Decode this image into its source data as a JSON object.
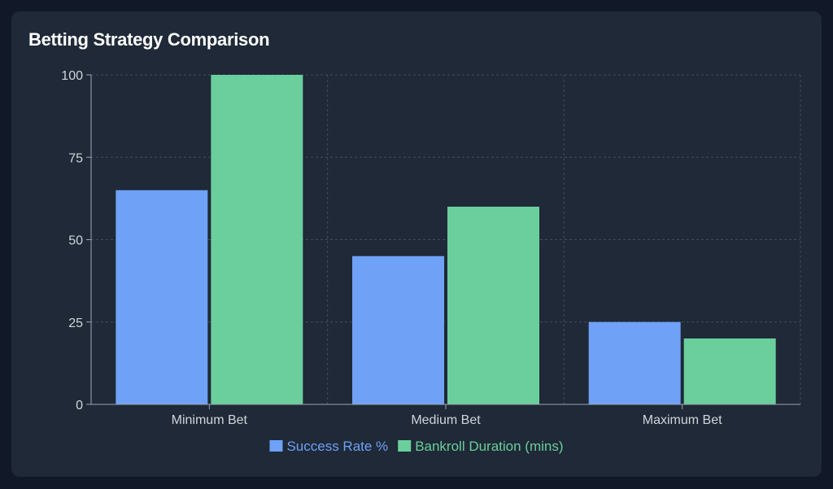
{
  "card": {
    "title": "Betting Strategy Comparison"
  },
  "chart_data": {
    "type": "bar",
    "title": "Betting Strategy Comparison",
    "xlabel": "",
    "ylabel": "",
    "categories": [
      "Minimum Bet",
      "Medium Bet",
      "Maximum Bet"
    ],
    "series": [
      {
        "name": "Success Rate %",
        "values": [
          65,
          45,
          25
        ],
        "color": "#6fa1f7"
      },
      {
        "name": "Bankroll Duration (mins)",
        "values": [
          100,
          60,
          20
        ],
        "color": "#6acf9c"
      }
    ],
    "ylim": [
      0,
      100
    ],
    "yticks": [
      0,
      25,
      50,
      75,
      100
    ],
    "grid": true,
    "legend": "bottom-center"
  }
}
